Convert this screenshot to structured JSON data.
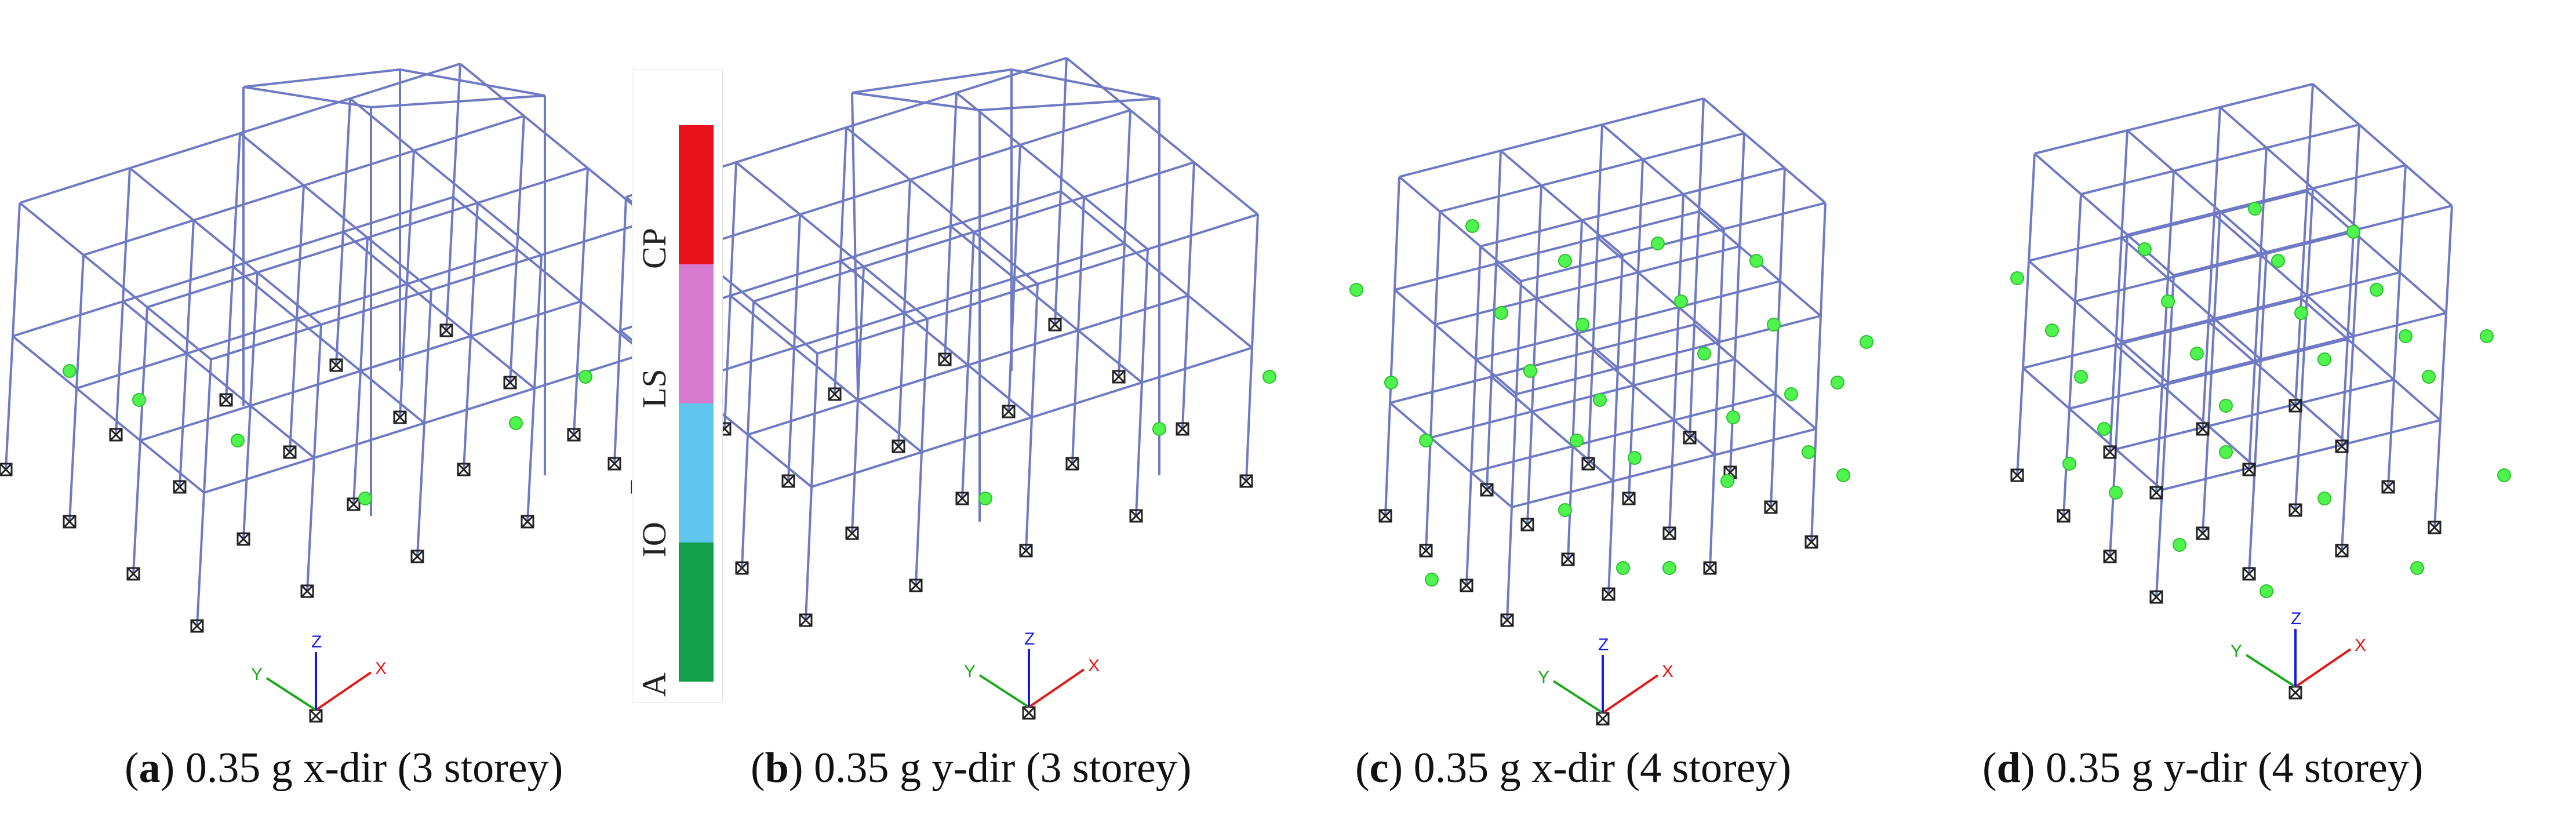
{
  "figure": {
    "panels": [
      {
        "letter": "a",
        "text": " 0.35 g x-dir (3 storey)"
      },
      {
        "letter": "b",
        "text": " 0.35 g y-dir (3 storey)"
      },
      {
        "letter": "c",
        "text": " 0.35 g x-dir (4 storey)"
      },
      {
        "letter": "d",
        "text": " 0.35 g y-dir (4 storey)"
      }
    ],
    "legend": {
      "levels": [
        {
          "label": "CP",
          "color": "#e8101a"
        },
        {
          "label": "LS",
          "color": "#d77bd0"
        },
        {
          "label": "IO",
          "color": "#5fc6ee"
        },
        {
          "label": "A",
          "color": "#14a04a"
        }
      ]
    },
    "axes": {
      "x": "X",
      "y": "Y",
      "z": "Z"
    },
    "colors": {
      "frame": "#6f79c4",
      "hinge": "#4ff44f",
      "x_axis": "#e01818",
      "y_axis": "#18a818",
      "z_axis": "#1818e0"
    }
  }
}
